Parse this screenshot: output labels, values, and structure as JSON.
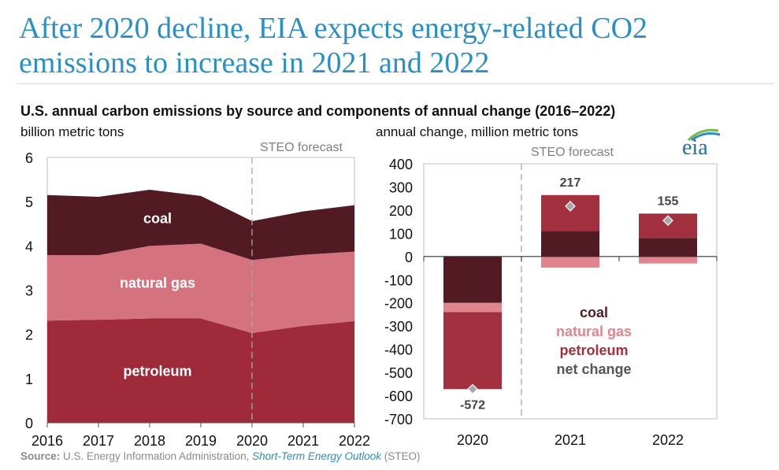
{
  "header": {
    "title": "After 2020 decline, EIA expects energy-related CO2 emissions to increase in 2021 and 2022",
    "subtitle": "U.S. annual carbon emissions by source and components of annual change (2016–2022)"
  },
  "logo": {
    "text": "eia",
    "icon": "eia-logo-icon"
  },
  "source": {
    "label": "Source:",
    "text": "U.S. Energy Information Administration,",
    "link": "Short-Term Energy Outlook",
    "suffix": "(STEO)"
  },
  "chart_data": [
    {
      "type": "area",
      "ylabel": "billion metric tons",
      "x": [
        "2016",
        "2017",
        "2018",
        "2019",
        "2020",
        "2021",
        "2022"
      ],
      "ylim": [
        0,
        6
      ],
      "yticks": [
        "0",
        "1",
        "2",
        "3",
        "4",
        "5",
        "6"
      ],
      "forecast_label": "STEO forecast",
      "forecast_start": "2020",
      "series": [
        {
          "name": "petroleum",
          "values": [
            2.31,
            2.33,
            2.36,
            2.36,
            2.03,
            2.19,
            2.3
          ],
          "color": "#9e2a3a"
        },
        {
          "name": "natural gas",
          "values": [
            1.48,
            1.46,
            1.64,
            1.69,
            1.65,
            1.61,
            1.57
          ],
          "color": "#d4737e"
        },
        {
          "name": "coal",
          "values": [
            1.36,
            1.32,
            1.27,
            1.08,
            0.88,
            0.98,
            1.05
          ],
          "color": "#521a22"
        }
      ]
    },
    {
      "type": "bar",
      "stacked": true,
      "ylabel": "annual change, million metric tons",
      "categories": [
        "2020",
        "2021",
        "2022"
      ],
      "ylim": [
        -700,
        400
      ],
      "yticks": [
        "400",
        "300",
        "200",
        "100",
        "0",
        "-100",
        "-200",
        "-300",
        "-400",
        "-500",
        "-600",
        "-700"
      ],
      "forecast_label": "STEO forecast",
      "series": [
        {
          "name": "coal",
          "values": [
            -200,
            110,
            80
          ],
          "color": "#521a22"
        },
        {
          "name": "natural gas",
          "values": [
            -40,
            -48,
            -30
          ],
          "color": "#e0858e"
        },
        {
          "name": "petroleum",
          "values": [
            -332,
            155,
            105
          ],
          "color": "#a3303f"
        }
      ],
      "net_change": {
        "name": "net change",
        "values": [
          -572,
          217,
          155
        ],
        "labels": [
          "-572",
          "217",
          "155"
        ],
        "color": "#555555"
      },
      "legend": {
        "position": "center-right",
        "colors": [
          "#521a22",
          "#e0858e",
          "#a3303f",
          "#555555"
        ]
      }
    }
  ]
}
